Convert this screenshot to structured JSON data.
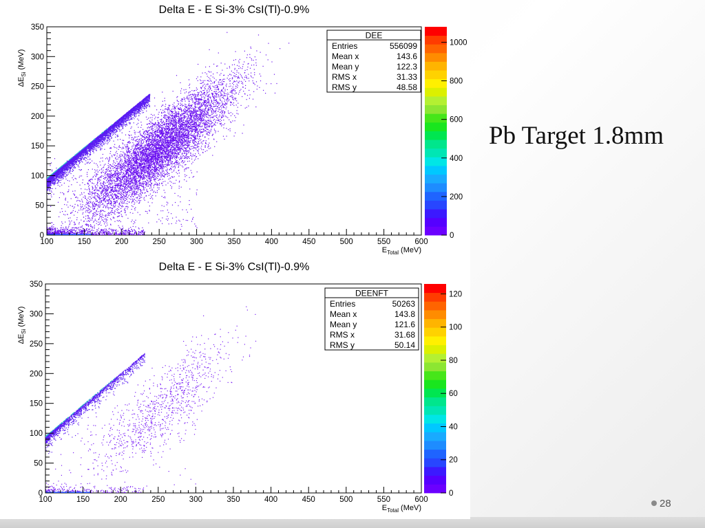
{
  "slide": {
    "title": "Pb Target 1.8mm",
    "page_number": "28"
  },
  "chart_data": [
    {
      "type": "heatmap",
      "title": "Delta E - E Si-3% CsI(Tl)-0.9%",
      "xlabel": {
        "main": "E",
        "sub": "Total",
        "unit": " (MeV)"
      },
      "ylabel": {
        "main": "ΔE",
        "sub": "Si",
        "unit": " (MeV)"
      },
      "xlim": [
        100,
        600
      ],
      "ylim": [
        0,
        350
      ],
      "x_ticks": [
        "100",
        "150",
        "200",
        "250",
        "300",
        "350",
        "400",
        "450",
        "500",
        "550",
        "600"
      ],
      "y_ticks": [
        "0",
        "50",
        "100",
        "150",
        "200",
        "250",
        "300",
        "350"
      ],
      "z_range": [
        0,
        1080
      ],
      "z_ticks": [
        "0",
        "200",
        "400",
        "600",
        "800",
        "1000"
      ],
      "z_tick_values": [
        0,
        200,
        400,
        600,
        800,
        1000
      ],
      "palette": [
        "#6b00ff",
        "#5500ff",
        "#3c19ff",
        "#2846ff",
        "#1f64ff",
        "#1e8cff",
        "#19aaff",
        "#00c8ff",
        "#00e6e6",
        "#00e6b4",
        "#00e68c",
        "#00e650",
        "#19e61e",
        "#46e619",
        "#8ce632",
        "#b4f032",
        "#dcf000",
        "#fff000",
        "#ffd200",
        "#ffb400",
        "#ff8c00",
        "#ff6400",
        "#ff3c00",
        "#ff0000"
      ],
      "stats": {
        "name": "DEE",
        "rows": [
          {
            "label": "Entries",
            "value": "556099"
          },
          {
            "label": "Mean x",
            "value": "143.6"
          },
          {
            "label": "Mean y",
            "value": "122.3"
          },
          {
            "label": "RMS x",
            "value": "31.33"
          },
          {
            "label": "RMS y",
            "value": "48.58"
          }
        ]
      },
      "distribution": {
        "ridge_x": [
          100,
          237
        ],
        "ridge_y": [
          96,
          238
        ],
        "band": {
          "x_center": 250,
          "x_width": 50,
          "y_slope": 1.0,
          "y_offset": -105,
          "y_width": 28
        },
        "point_color": "#6a0ff0",
        "ridge_color": "#5a1cf2",
        "ridge_edge_color": "#2ec0c8"
      }
    },
    {
      "type": "heatmap",
      "title": "Delta E - E Si-3% CsI(Tl)-0.9%",
      "xlabel": {
        "main": "E",
        "sub": "Total",
        "unit": " (MeV)"
      },
      "ylabel": {
        "main": "ΔE",
        "sub": "Si",
        "unit": " (MeV)"
      },
      "xlim": [
        100,
        600
      ],
      "ylim": [
        0,
        350
      ],
      "x_ticks": [
        "100",
        "150",
        "200",
        "250",
        "300",
        "350",
        "400",
        "450",
        "500",
        "550",
        "600"
      ],
      "y_ticks": [
        "0",
        "50",
        "100",
        "150",
        "200",
        "250",
        "300",
        "350"
      ],
      "z_range": [
        0,
        126
      ],
      "z_ticks": [
        "0",
        "20",
        "40",
        "60",
        "80",
        "100",
        "120"
      ],
      "z_tick_values": [
        0,
        20,
        40,
        60,
        80,
        100,
        120
      ],
      "palette": [
        "#6b00ff",
        "#5500ff",
        "#3c19ff",
        "#2846ff",
        "#1f64ff",
        "#1e8cff",
        "#19aaff",
        "#00c8ff",
        "#00e6e6",
        "#00e6b4",
        "#00e68c",
        "#00e650",
        "#19e61e",
        "#46e619",
        "#8ce632",
        "#b4f032",
        "#dcf000",
        "#fff000",
        "#ffd200",
        "#ffb400",
        "#ff8c00",
        "#ff6400",
        "#ff3c00",
        "#ff0000"
      ],
      "stats": {
        "name": "DEENFT",
        "rows": [
          {
            "label": "Entries",
            "value": "50263"
          },
          {
            "label": "Mean x",
            "value": "143.8"
          },
          {
            "label": "Mean y",
            "value": "121.6"
          },
          {
            "label": "RMS x",
            "value": "31.68"
          },
          {
            "label": "RMS y",
            "value": "50.14"
          }
        ]
      },
      "distribution": {
        "ridge_x": [
          100,
          232
        ],
        "ridge_y": [
          95,
          235
        ],
        "band": {
          "x_center": 255,
          "x_width": 45,
          "y_slope": 1.0,
          "y_offset": -110,
          "y_width": 30
        },
        "point_color": "#7a1ff5",
        "ridge_color": "#5a1cf2",
        "ridge_edge_color": "#2ec0c8"
      }
    }
  ]
}
